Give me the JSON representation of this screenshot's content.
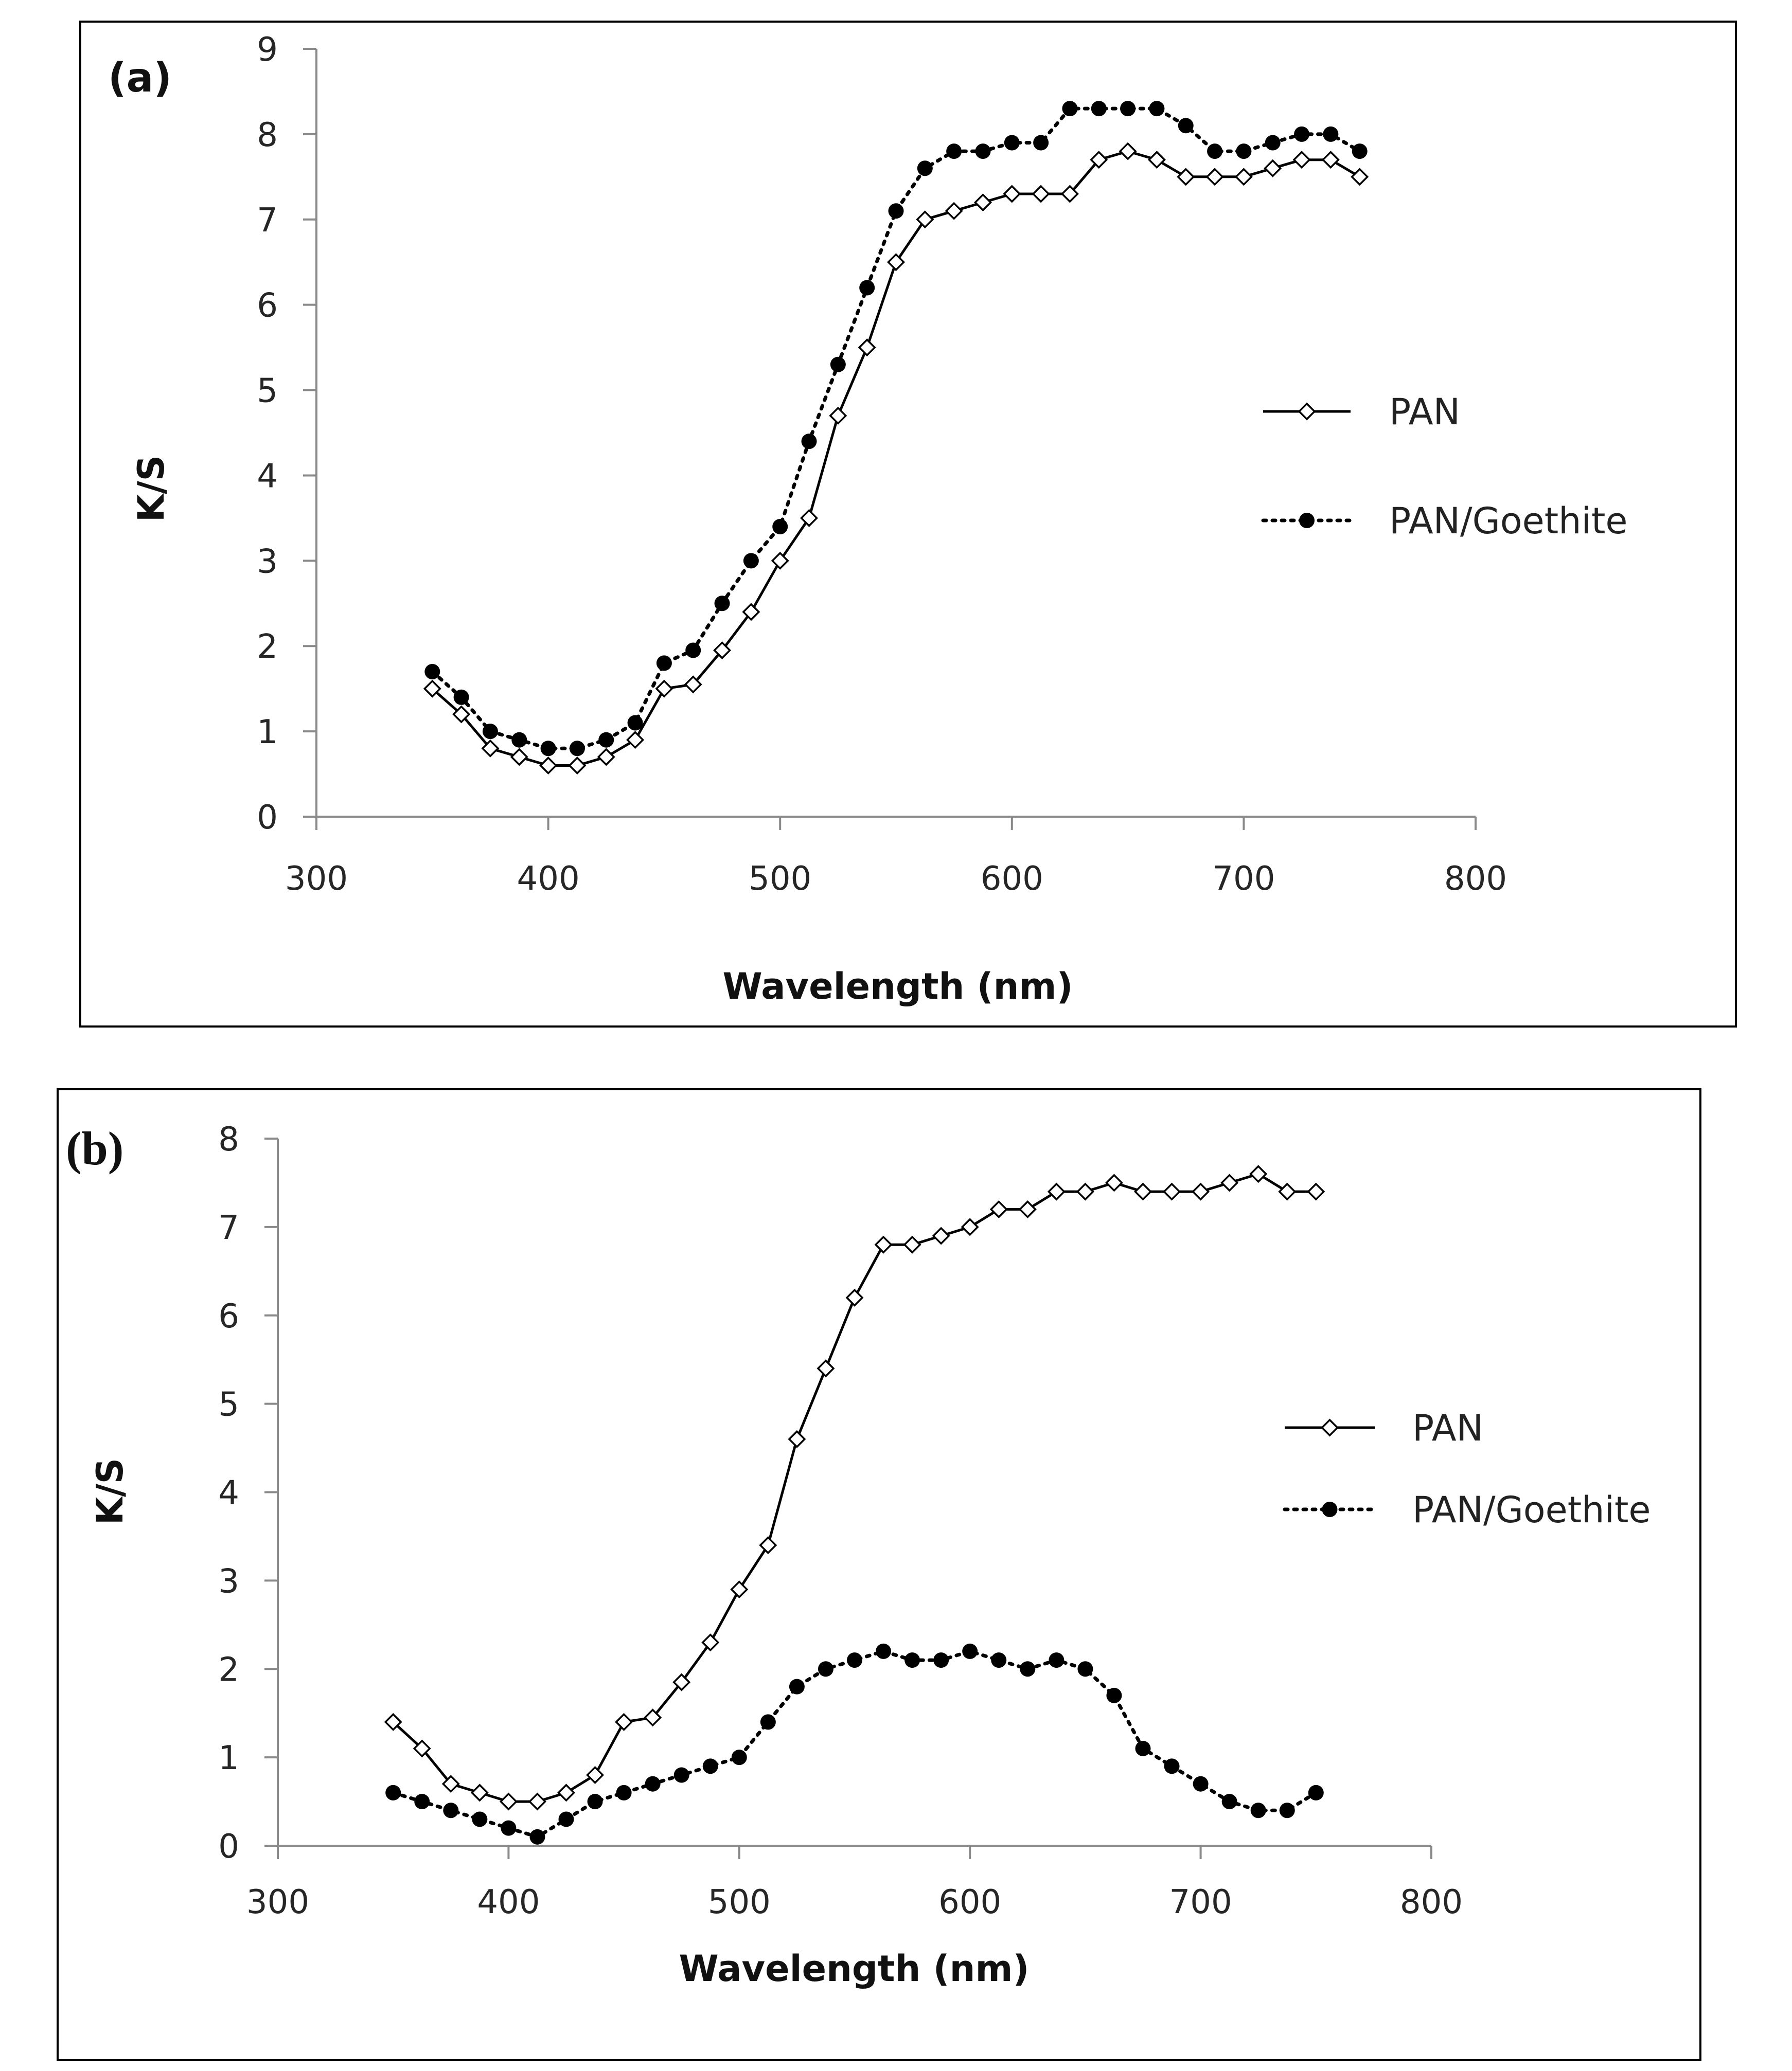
{
  "chart_data": [
    {
      "type": "line",
      "panel_label": "(a)",
      "title": "",
      "xlabel": "Wavelength (nm)",
      "ylabel": "K/S",
      "xlim": [
        300,
        800
      ],
      "ylim": [
        0,
        9
      ],
      "xticks": [
        300,
        400,
        500,
        600,
        700,
        800
      ],
      "yticks": [
        0,
        1,
        2,
        3,
        4,
        5,
        6,
        7,
        8,
        9
      ],
      "grid": false,
      "legend_position": "right",
      "x": [
        350,
        362.5,
        375,
        387.5,
        400,
        412.5,
        425,
        437.5,
        450,
        462.5,
        475,
        487.5,
        500,
        512.5,
        525,
        537.5,
        550,
        562.5,
        575,
        587.5,
        600,
        612.5,
        625,
        637.5,
        650,
        662.5,
        675,
        687.5,
        700,
        712.5,
        725,
        737.5,
        750
      ],
      "series": [
        {
          "name": "PAN",
          "style": "solid-diamond",
          "color": "#000000",
          "values": [
            1.5,
            1.2,
            0.8,
            0.7,
            0.6,
            0.6,
            0.7,
            0.9,
            1.5,
            1.55,
            1.95,
            2.4,
            3.0,
            3.5,
            4.7,
            5.5,
            6.5,
            7.0,
            7.1,
            7.2,
            7.3,
            7.3,
            7.3,
            7.7,
            7.8,
            7.7,
            7.5,
            7.5,
            7.5,
            7.6,
            7.7,
            7.7,
            7.5
          ]
        },
        {
          "name": "PAN/Goethite",
          "style": "dotted-circle",
          "color": "#000000",
          "values": [
            1.7,
            1.4,
            1.0,
            0.9,
            0.8,
            0.8,
            0.9,
            1.1,
            1.8,
            1.95,
            2.5,
            3.0,
            3.4,
            4.4,
            5.3,
            6.2,
            7.1,
            7.6,
            7.8,
            7.8,
            7.9,
            7.9,
            8.3,
            8.3,
            8.3,
            8.3,
            8.1,
            7.8,
            7.8,
            7.9,
            8.0,
            8.0,
            7.8
          ]
        }
      ]
    },
    {
      "type": "line",
      "panel_label": "(b)",
      "title": "",
      "xlabel": "Wavelength (nm)",
      "ylabel": "K/S",
      "xlim": [
        300,
        800
      ],
      "ylim": [
        0,
        8
      ],
      "xticks": [
        300,
        400,
        500,
        600,
        700,
        800
      ],
      "yticks": [
        0,
        1,
        2,
        3,
        4,
        5,
        6,
        7,
        8
      ],
      "grid": false,
      "legend_position": "right",
      "x": [
        350,
        362.5,
        375,
        387.5,
        400,
        412.5,
        425,
        437.5,
        450,
        462.5,
        475,
        487.5,
        500,
        512.5,
        525,
        537.5,
        550,
        562.5,
        575,
        587.5,
        600,
        612.5,
        625,
        637.5,
        650,
        662.5,
        675,
        687.5,
        700,
        712.5,
        725,
        737.5,
        750
      ],
      "series": [
        {
          "name": "PAN",
          "style": "solid-diamond",
          "color": "#000000",
          "values": [
            1.4,
            1.1,
            0.7,
            0.6,
            0.5,
            0.5,
            0.6,
            0.8,
            1.4,
            1.45,
            1.85,
            2.3,
            2.9,
            3.4,
            4.6,
            5.4,
            6.2,
            6.8,
            6.8,
            6.9,
            7.0,
            7.2,
            7.2,
            7.4,
            7.4,
            7.5,
            7.4,
            7.4,
            7.4,
            7.5,
            7.6,
            7.4,
            7.4
          ]
        },
        {
          "name": "PAN/Goethite",
          "style": "dotted-circle",
          "color": "#000000",
          "values": [
            0.6,
            0.5,
            0.4,
            0.3,
            0.2,
            0.1,
            0.3,
            0.5,
            0.6,
            0.7,
            0.8,
            0.9,
            1.0,
            1.4,
            1.8,
            2.0,
            2.1,
            2.2,
            2.1,
            2.1,
            2.2,
            2.1,
            2.0,
            2.1,
            2.0,
            1.7,
            1.1,
            0.9,
            0.7,
            0.5,
            0.4,
            0.4,
            0.6
          ]
        }
      ]
    }
  ]
}
